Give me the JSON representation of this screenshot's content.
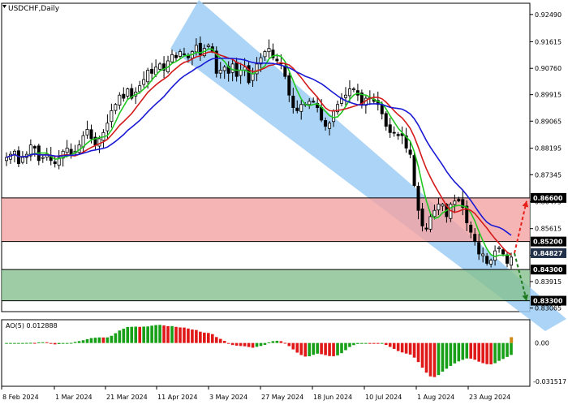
{
  "chart_data": {
    "type": "candlestick",
    "title": "USDCHF,Daily",
    "x_tick_labels": [
      "8 Feb 2024",
      "1 Mar 2024",
      "21 Mar 2024",
      "11 Apr 2024",
      "3 May 2024",
      "27 May 2024",
      "18 Jun 2024",
      "10 Jul 2024",
      "1 Aug 2024",
      "23 Aug 2024"
    ],
    "y_tick_labels": [
      "0.92490",
      "0.91615",
      "0.90760",
      "0.89915",
      "0.89065",
      "0.88195",
      "0.87345",
      "0.86475",
      "0.85615",
      "0.84760",
      "0.83915",
      "0.83065"
    ],
    "price_range": [
      0.8295,
      0.9285
    ],
    "level_labels": [
      {
        "text": "0.86600",
        "value": 0.866,
        "role": "resistance"
      },
      {
        "text": "0.85200",
        "value": 0.852,
        "role": "resistance_low"
      },
      {
        "text": "0.84827",
        "value": 0.84827,
        "role": "current"
      },
      {
        "text": "0.84300",
        "value": 0.843,
        "role": "support"
      },
      {
        "text": "0.83300",
        "value": 0.833,
        "role": "support_low"
      }
    ],
    "zones": [
      {
        "name": "resistance",
        "from": 0.852,
        "to": 0.866,
        "color": "#f4a3a3"
      },
      {
        "name": "support",
        "from": 0.833,
        "to": 0.843,
        "color": "#86bf8e"
      }
    ],
    "channel_color": "#9ccdf4",
    "ma_colors": {
      "fast": "#22c722",
      "mid": "#d41a1a",
      "slow": "#1a1ad4"
    },
    "close_series": [
      0.879,
      0.88,
      0.881,
      0.877,
      0.879,
      0.88,
      0.883,
      0.882,
      0.878,
      0.879,
      0.88,
      0.878,
      0.877,
      0.879,
      0.881,
      0.882,
      0.88,
      0.881,
      0.883,
      0.886,
      0.888,
      0.885,
      0.883,
      0.885,
      0.887,
      0.89,
      0.894,
      0.896,
      0.899,
      0.898,
      0.901,
      0.898,
      0.9,
      0.902,
      0.904,
      0.907,
      0.906,
      0.908,
      0.909,
      0.907,
      0.91,
      0.912,
      0.911,
      0.913,
      0.912,
      0.911,
      0.913,
      0.915,
      0.912,
      0.914,
      0.915,
      0.913,
      0.906,
      0.907,
      0.908,
      0.906,
      0.909,
      0.905,
      0.907,
      0.908,
      0.903,
      0.906,
      0.909,
      0.911,
      0.913,
      0.914,
      0.911,
      0.91,
      0.909,
      0.905,
      0.899,
      0.895,
      0.894,
      0.896,
      0.896,
      0.897,
      0.897,
      0.895,
      0.891,
      0.889,
      0.89,
      0.894,
      0.896,
      0.898,
      0.899,
      0.901,
      0.901,
      0.899,
      0.896,
      0.898,
      0.898,
      0.897,
      0.896,
      0.893,
      0.889,
      0.887,
      0.887,
      0.886,
      0.886,
      0.882,
      0.88,
      0.87,
      0.862,
      0.857,
      0.856,
      0.86,
      0.862,
      0.864,
      0.864,
      0.86,
      0.864,
      0.865,
      0.865,
      0.863,
      0.858,
      0.855,
      0.852,
      0.848,
      0.848,
      0.845,
      0.846,
      0.849,
      0.85,
      0.848,
      0.845,
      0.847
    ],
    "forecast": [
      {
        "direction": "up",
        "from": 0.84827,
        "to": 0.865,
        "color": "#e8201a"
      },
      {
        "direction": "down",
        "from": 0.84827,
        "to": 0.833,
        "color": "#1f7a1f"
      }
    ],
    "oscillator": {
      "label": "AO(5) 0.012888",
      "zero_label": "0.00",
      "min_label": "-0.031517",
      "range": [
        -0.0335,
        0.018
      ],
      "up_color": "#18a018",
      "down_color": "#e01818"
    }
  }
}
